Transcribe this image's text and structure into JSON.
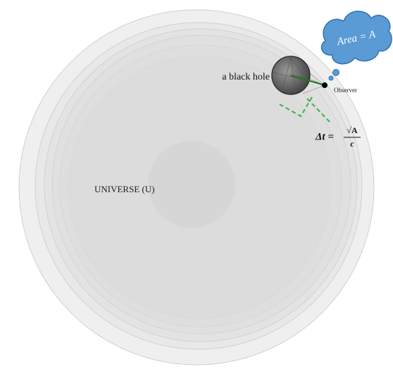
{
  "labels": {
    "black_hole": "a black hole",
    "observer": "Observer",
    "universe": "UNIVERSE (U)"
  },
  "cloud": {
    "text": "Area = A"
  },
  "formula": {
    "lhs": "Δt =",
    "numerator": "√A",
    "denominator": "c"
  }
}
